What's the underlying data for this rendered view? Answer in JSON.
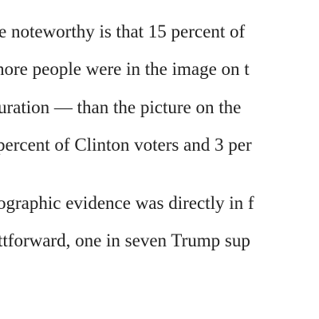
{
  "paragraphs": [
    {
      "lines": [
        "e noteworthy is that 15 percent of",
        "nore people were in the image on t",
        "uration — than the picture on the",
        "percent of Clinton voters and 3 per"
      ]
    },
    {
      "lines": [
        "ographic evidence was directly in f",
        "ttforward, one in seven Trump sup"
      ]
    }
  ]
}
